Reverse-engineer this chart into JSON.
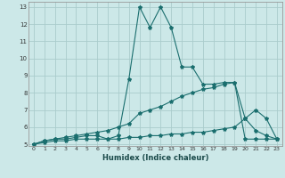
{
  "xlabel": "Humidex (Indice chaleur)",
  "bg_color": "#cce8e8",
  "grid_color": "#aacccc",
  "line_color": "#1a6e6e",
  "xmin": 0,
  "xmax": 23,
  "ymin": 5,
  "ymax": 13,
  "yticks": [
    5,
    6,
    7,
    8,
    9,
    10,
    11,
    12,
    13
  ],
  "xticks": [
    0,
    1,
    2,
    3,
    4,
    5,
    6,
    7,
    8,
    9,
    10,
    11,
    12,
    13,
    14,
    15,
    16,
    17,
    18,
    19,
    20,
    21,
    22,
    23
  ],
  "line1_x": [
    0,
    1,
    2,
    3,
    4,
    5,
    6,
    7,
    8,
    9,
    10,
    11,
    12,
    13,
    14,
    15,
    16,
    17,
    18,
    19,
    20,
    21,
    22,
    23
  ],
  "line1_y": [
    5.0,
    5.2,
    5.3,
    5.3,
    5.4,
    5.5,
    5.5,
    5.3,
    5.5,
    8.8,
    13.0,
    11.8,
    13.0,
    11.8,
    9.5,
    9.5,
    8.5,
    8.5,
    8.6,
    8.6,
    5.3,
    5.3,
    5.3,
    5.3
  ],
  "line2_x": [
    0,
    1,
    2,
    3,
    4,
    5,
    6,
    7,
    8,
    9,
    10,
    11,
    12,
    13,
    14,
    15,
    16,
    17,
    18,
    19,
    20,
    21,
    22,
    23
  ],
  "line2_y": [
    5.0,
    5.2,
    5.3,
    5.4,
    5.5,
    5.6,
    5.7,
    5.8,
    6.0,
    6.2,
    6.8,
    7.0,
    7.2,
    7.5,
    7.8,
    8.0,
    8.2,
    8.3,
    8.5,
    8.6,
    6.5,
    5.8,
    5.5,
    5.3
  ],
  "line3_x": [
    0,
    1,
    2,
    3,
    4,
    5,
    6,
    7,
    8,
    9,
    10,
    11,
    12,
    13,
    14,
    15,
    16,
    17,
    18,
    19,
    20,
    21,
    22,
    23
  ],
  "line3_y": [
    5.0,
    5.1,
    5.2,
    5.2,
    5.3,
    5.3,
    5.3,
    5.3,
    5.3,
    5.4,
    5.4,
    5.5,
    5.5,
    5.6,
    5.6,
    5.7,
    5.7,
    5.8,
    5.9,
    6.0,
    6.5,
    7.0,
    6.5,
    5.3
  ]
}
